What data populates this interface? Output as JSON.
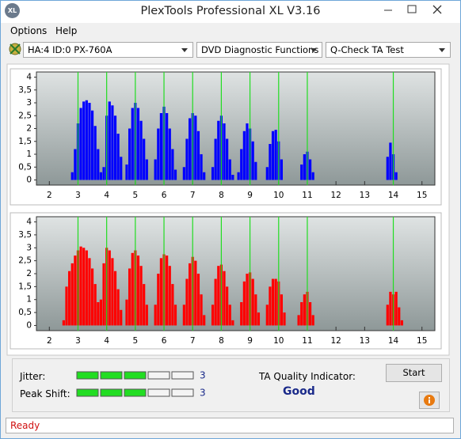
{
  "window": {
    "icon": "XL",
    "title": "PlexTools Professional XL V3.16"
  },
  "menu": [
    "Options",
    "Help"
  ],
  "toolbar": {
    "drive": "HA:4 ID:0  PX-760A",
    "function": "DVD Diagnostic Functions",
    "test": "Q-Check TA Test"
  },
  "chart_data": [
    {
      "type": "bar",
      "color": "#0000ff",
      "x": [
        2.8,
        2.9,
        3.0,
        3.1,
        3.2,
        3.3,
        3.4,
        3.5,
        3.6,
        3.7,
        3.8,
        3.9,
        4.0,
        4.1,
        4.2,
        4.3,
        4.4,
        4.5,
        4.7,
        4.8,
        4.9,
        5.0,
        5.1,
        5.2,
        5.3,
        5.4,
        5.7,
        5.8,
        5.9,
        6.0,
        6.1,
        6.2,
        6.3,
        6.4,
        6.7,
        6.8,
        6.9,
        7.0,
        7.1,
        7.2,
        7.3,
        7.4,
        7.7,
        7.8,
        7.9,
        8.0,
        8.1,
        8.2,
        8.3,
        8.4,
        8.6,
        8.7,
        8.8,
        8.9,
        9.0,
        9.1,
        9.2,
        9.6,
        9.7,
        9.8,
        9.9,
        10.0,
        10.1,
        10.8,
        10.9,
        11.0,
        11.1,
        11.2,
        13.8,
        13.9,
        14.0,
        14.1
      ],
      "values": [
        0.3,
        1.2,
        2.2,
        2.8,
        3.05,
        3.1,
        3.0,
        2.7,
        2.1,
        1.2,
        0.3,
        0.5,
        2.5,
        3.05,
        2.9,
        2.5,
        1.8,
        0.9,
        0.6,
        2.0,
        2.8,
        3.0,
        2.8,
        2.3,
        1.6,
        0.8,
        0.8,
        2.0,
        2.6,
        2.85,
        2.6,
        2.0,
        1.2,
        0.4,
        0.5,
        1.6,
        2.4,
        2.6,
        2.5,
        1.9,
        1.0,
        0.3,
        0.5,
        1.6,
        2.3,
        2.5,
        2.2,
        1.6,
        0.8,
        0.2,
        0.3,
        1.2,
        1.9,
        2.2,
        2.0,
        1.5,
        0.7,
        0.5,
        1.4,
        1.9,
        1.95,
        1.5,
        0.8,
        0.6,
        1.0,
        1.1,
        0.8,
        0.3,
        0.9,
        1.45,
        1.0,
        0.3
      ],
      "xlim": [
        1.55,
        15.45
      ],
      "ylim": [
        -0.2,
        4.2
      ],
      "xticks": [
        2,
        3,
        4,
        5,
        6,
        7,
        8,
        9,
        10,
        11,
        12,
        13,
        14,
        15
      ],
      "yticks": [
        0,
        {
          "value": 0.5,
          "label": "0,5"
        },
        1,
        {
          "value": 1.5,
          "label": "1,5"
        },
        2,
        {
          "value": 2.5,
          "label": "2,5"
        },
        3,
        {
          "value": 3.5,
          "label": "3,5"
        },
        4
      ],
      "reference_lines": [
        3,
        4,
        5,
        6,
        7,
        8,
        9,
        10,
        11,
        14
      ],
      "reference_color": "#22dd22"
    },
    {
      "type": "bar",
      "color": "#ff0000",
      "x": [
        2.5,
        2.6,
        2.7,
        2.8,
        2.9,
        3.0,
        3.1,
        3.2,
        3.3,
        3.4,
        3.5,
        3.6,
        3.7,
        3.8,
        3.9,
        4.0,
        4.1,
        4.2,
        4.3,
        4.4,
        4.5,
        4.7,
        4.8,
        4.9,
        5.0,
        5.1,
        5.2,
        5.3,
        5.4,
        5.7,
        5.8,
        5.9,
        6.0,
        6.1,
        6.2,
        6.3,
        6.4,
        6.7,
        6.8,
        6.9,
        7.0,
        7.1,
        7.2,
        7.3,
        7.4,
        7.7,
        7.8,
        7.9,
        8.0,
        8.1,
        8.2,
        8.3,
        8.4,
        8.7,
        8.8,
        8.9,
        9.0,
        9.1,
        9.2,
        9.3,
        9.6,
        9.7,
        9.8,
        9.9,
        10.0,
        10.1,
        10.2,
        10.7,
        10.8,
        10.9,
        11.0,
        11.1,
        11.2,
        13.8,
        13.9,
        14.0,
        14.1,
        14.2,
        14.3
      ],
      "values": [
        0.2,
        1.5,
        2.1,
        2.4,
        2.7,
        2.9,
        3.05,
        3.0,
        2.9,
        2.6,
        2.2,
        1.6,
        0.9,
        1.0,
        2.4,
        3.0,
        2.9,
        2.6,
        2.1,
        1.4,
        0.6,
        1.0,
        2.2,
        2.8,
        2.9,
        2.7,
        2.3,
        1.6,
        0.8,
        0.8,
        2.0,
        2.6,
        2.75,
        2.7,
        2.3,
        1.6,
        0.8,
        0.8,
        1.8,
        2.4,
        2.65,
        2.5,
        2.0,
        1.2,
        0.4,
        0.8,
        1.8,
        2.3,
        2.35,
        2.1,
        1.5,
        0.8,
        0.2,
        0.9,
        1.7,
        2.0,
        2.05,
        1.8,
        1.2,
        0.5,
        0.8,
        1.5,
        1.8,
        1.8,
        1.7,
        1.2,
        0.5,
        0.4,
        0.9,
        1.2,
        1.3,
        0.9,
        0.4,
        0.8,
        1.3,
        1.2,
        1.3,
        0.7,
        0.2
      ],
      "xlim": [
        1.55,
        15.45
      ],
      "ylim": [
        -0.2,
        4.2
      ],
      "xticks": [
        2,
        3,
        4,
        5,
        6,
        7,
        8,
        9,
        10,
        11,
        12,
        13,
        14,
        15
      ],
      "yticks": [
        0,
        {
          "value": 0.5,
          "label": "0,5"
        },
        1,
        {
          "value": 1.5,
          "label": "1,5"
        },
        2,
        {
          "value": 2.5,
          "label": "2,5"
        },
        3,
        {
          "value": 3.5,
          "label": "3,5"
        },
        4
      ],
      "reference_lines": [
        3,
        4,
        5,
        6,
        7,
        8,
        9,
        10,
        11,
        14
      ],
      "reference_color": "#22dd22"
    }
  ],
  "results": {
    "jitter": {
      "label": "Jitter:",
      "value": 3,
      "max": 5
    },
    "peak_shift": {
      "label": "Peak Shift:",
      "value": 3,
      "max": 5
    },
    "ta_quality": {
      "label": "TA Quality Indicator:",
      "value": "Good"
    }
  },
  "buttons": {
    "start": "Start"
  },
  "status": "Ready"
}
